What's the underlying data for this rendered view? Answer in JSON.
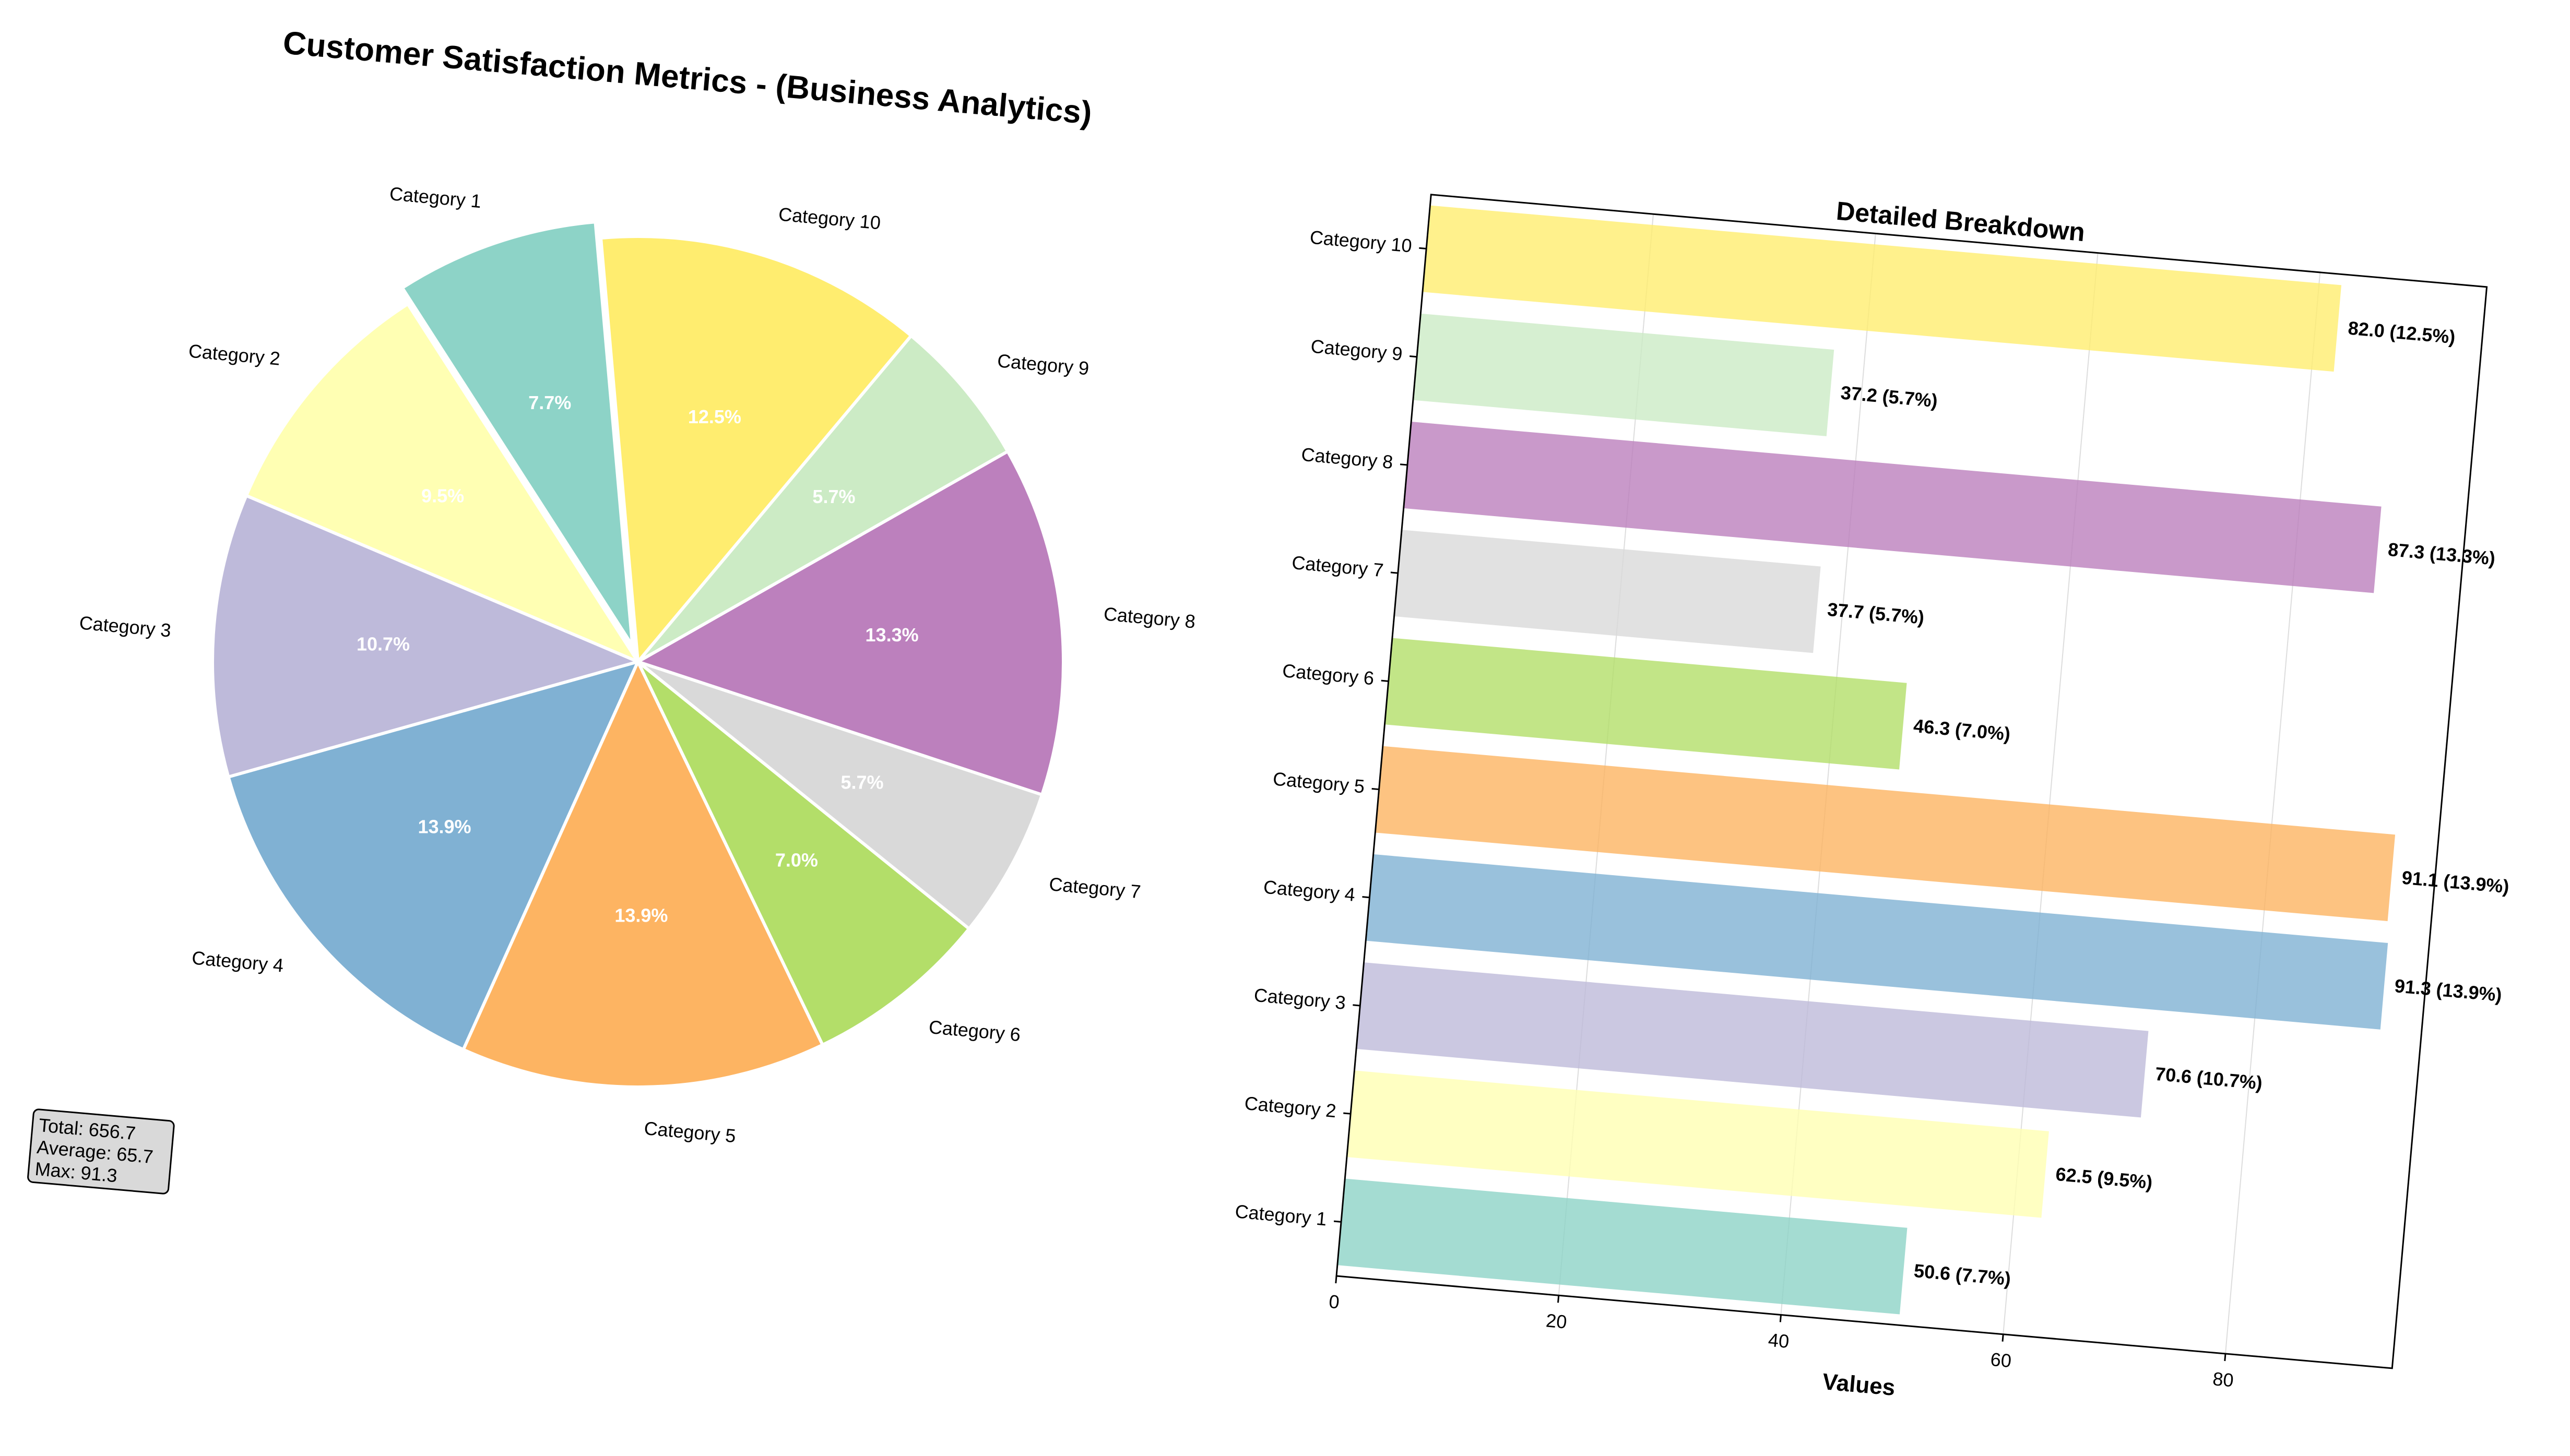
{
  "title": "Customer Satisfaction Metrics - (Business Analytics)",
  "chart_data": [
    {
      "type": "pie",
      "categories": [
        "Category 1",
        "Category 2",
        "Category 3",
        "Category 4",
        "Category 5",
        "Category 6",
        "Category 7",
        "Category 8",
        "Category 9",
        "Category 10"
      ],
      "values": [
        50.6,
        62.5,
        70.6,
        91.3,
        91.1,
        46.3,
        37.7,
        87.3,
        37.2,
        82.0
      ],
      "percent_labels": [
        "7.7%",
        "9.5%",
        "10.7%",
        "13.9%",
        "13.9%",
        "7.0%",
        "5.7%",
        "13.3%",
        "5.7%",
        "12.5%"
      ],
      "colors": [
        "#8dd3c7",
        "#ffffb3",
        "#bebada",
        "#80b1d3",
        "#fdb462",
        "#b3de69",
        "#d9d9d9",
        "#bc80bd",
        "#ccebc5",
        "#ffed6f"
      ],
      "exploded": [
        "Category 1"
      ],
      "stats_box": {
        "lines": [
          "Total: 656.7",
          "Average: 65.7",
          "Max: 91.3"
        ]
      }
    },
    {
      "type": "bar",
      "orientation": "horizontal",
      "title": "Detailed Breakdown",
      "xlabel": "Values",
      "ylabel": "",
      "categories": [
        "Category 1",
        "Category 2",
        "Category 3",
        "Category 4",
        "Category 5",
        "Category 6",
        "Category 7",
        "Category 8",
        "Category 9",
        "Category 10"
      ],
      "values": [
        50.6,
        62.5,
        70.6,
        91.3,
        91.1,
        46.3,
        37.7,
        87.3,
        37.2,
        82.0
      ],
      "bar_labels": [
        "50.6 (7.7%)",
        "62.5 (9.5%)",
        "70.6 (10.7%)",
        "91.3 (13.9%)",
        "91.1 (13.9%)",
        "46.3 (7.0%)",
        "37.7 (5.7%)",
        "87.3 (13.3%)",
        "37.2 (5.7%)",
        "82.0 (12.5%)"
      ],
      "colors": [
        "#8dd3c7",
        "#ffffb3",
        "#bebada",
        "#80b1d3",
        "#fdb462",
        "#b3de69",
        "#d9d9d9",
        "#bc80bd",
        "#ccebc5",
        "#ffed6f"
      ],
      "xticks": [
        "0",
        "20",
        "40",
        "60",
        "80"
      ],
      "xlim": [
        0,
        95
      ],
      "grid": "x"
    }
  ]
}
